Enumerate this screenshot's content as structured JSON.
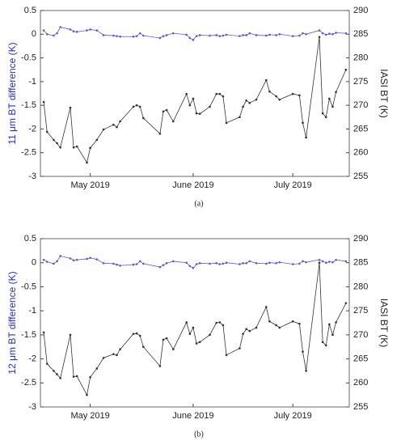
{
  "chart_data": [
    {
      "type": "line",
      "caption": "(a)",
      "ylabel": "11 μm BT difference (K)",
      "y2label": "IASI BT (K)",
      "x": [
        107,
        108,
        110,
        111,
        112,
        115,
        116,
        117,
        120,
        121,
        123,
        125,
        128,
        129,
        130,
        134,
        135,
        136,
        137,
        142,
        143,
        144,
        146,
        150,
        151,
        152,
        153,
        154,
        157,
        159,
        160,
        161,
        162,
        166,
        167,
        168,
        169,
        171,
        174,
        175,
        177,
        178,
        182,
        184,
        185,
        186,
        190,
        191,
        192,
        193,
        194,
        195,
        198
      ],
      "xlim": [
        106,
        199
      ],
      "xticks": [
        {
          "value": 121,
          "label": "May 2019"
        },
        {
          "value": 152,
          "label": "June 2019"
        },
        {
          "value": 182,
          "label": "July 2019"
        }
      ],
      "ylim": [
        -3,
        0.5
      ],
      "yticks": [
        0.5,
        0,
        -0.5,
        -1,
        -1.5,
        -2,
        -2.5,
        -3
      ],
      "y2lim": [
        255,
        290
      ],
      "y2ticks": [
        290,
        285,
        280,
        275,
        270,
        265,
        260,
        255
      ],
      "series": [
        {
          "color": "#5a5ad8",
          "values": [
            0.08,
            0,
            -0.03,
            0.02,
            0.15,
            0.1,
            0.06,
            0.05,
            0.08,
            0.1,
            0.08,
            -0.02,
            -0.03,
            -0.04,
            -0.05,
            -0.05,
            -0.04,
            0.02,
            -0.03,
            -0.08,
            -0.04,
            -0.02,
            0.02,
            -0.01,
            -0.08,
            -0.12,
            -0.04,
            -0.02,
            -0.03,
            -0.02,
            -0.04,
            -0.03,
            -0.01,
            -0.04,
            -0.02,
            -0.02,
            0.02,
            -0.02,
            -0.03,
            -0.01,
            -0.02,
            0,
            -0.04,
            -0.03,
            0.02,
            0,
            0.08,
            0.02,
            -0.01,
            0.01,
            0,
            0.03,
            0.02
          ]
        },
        {
          "color": "#333333",
          "axis": "y2",
          "values": [
            270.7,
            264.4,
            262.7,
            262,
            261.1,
            269.5,
            261.1,
            261.3,
            257.9,
            261,
            262.7,
            264.9,
            265.9,
            265.4,
            266.6,
            269.7,
            270,
            269.7,
            267.3,
            264,
            268.7,
            269,
            266.6,
            272.4,
            270,
            271.4,
            268.3,
            268.2,
            269.7,
            272.4,
            272.4,
            271.9,
            266.3,
            267.5,
            269.7,
            271,
            270.5,
            271.2,
            275.3,
            272.9,
            271.9,
            271.2,
            272.4,
            272.1,
            266.3,
            263.2,
            284.4,
            268.3,
            267.5,
            271.4,
            269.7,
            272.8,
            277.5
          ]
        }
      ]
    },
    {
      "type": "line",
      "caption": "(b)",
      "ylabel": "12 μm BT difference (K)",
      "y2label": "IASI BT (K)",
      "x": [
        107,
        108,
        110,
        111,
        112,
        115,
        116,
        117,
        120,
        121,
        123,
        125,
        128,
        129,
        130,
        134,
        135,
        136,
        137,
        142,
        143,
        144,
        146,
        150,
        151,
        152,
        153,
        154,
        157,
        159,
        160,
        161,
        162,
        166,
        167,
        168,
        169,
        171,
        174,
        175,
        177,
        178,
        182,
        184,
        185,
        186,
        190,
        191,
        192,
        193,
        194,
        195,
        198
      ],
      "xlim": [
        106,
        199
      ],
      "xticks": [
        {
          "value": 121,
          "label": "May 2019"
        },
        {
          "value": 152,
          "label": "June 2019"
        },
        {
          "value": 182,
          "label": "July 2019"
        }
      ],
      "ylim": [
        -3,
        0.5
      ],
      "yticks": [
        0.5,
        0,
        -0.5,
        -1,
        -1.5,
        -2,
        -2.5,
        -3
      ],
      "y2lim": [
        255,
        290
      ],
      "y2ticks": [
        290,
        285,
        280,
        275,
        270,
        265,
        260,
        255
      ],
      "series": [
        {
          "color": "#5a5ad8",
          "values": [
            0.06,
            0.02,
            -0.02,
            0.03,
            0.14,
            0.09,
            0.05,
            0.06,
            0.08,
            0.1,
            0.07,
            -0.01,
            -0.02,
            -0.04,
            -0.06,
            -0.04,
            -0.03,
            0.03,
            -0.02,
            -0.09,
            -0.05,
            -0.01,
            0.03,
            0,
            -0.07,
            -0.11,
            -0.03,
            -0.01,
            -0.02,
            -0.01,
            -0.03,
            -0.02,
            0,
            -0.03,
            -0.01,
            -0.01,
            0.03,
            -0.01,
            -0.02,
            0,
            -0.01,
            0.01,
            -0.03,
            -0.02,
            0.03,
            0.01,
            0.06,
            0.03,
            0,
            0.02,
            0.01,
            0.06,
            0.03
          ]
        },
        {
          "color": "#333333",
          "axis": "y2",
          "values": [
            270.5,
            264,
            262.5,
            261.8,
            261,
            270,
            261.3,
            261.4,
            257.5,
            261.2,
            263,
            265.2,
            266,
            265.8,
            267,
            270.2,
            270.3,
            269.8,
            267.5,
            263.5,
            269,
            269.3,
            267,
            272.6,
            270.2,
            271.5,
            268.2,
            268.5,
            270,
            272.5,
            272.6,
            272,
            265.8,
            267.2,
            270.2,
            271.2,
            270.8,
            271.5,
            275.8,
            272.8,
            272,
            271.5,
            272.8,
            272.3,
            266.5,
            262.5,
            285,
            268.5,
            267.8,
            272.2,
            270,
            272.6,
            276.6
          ]
        }
      ]
    }
  ]
}
